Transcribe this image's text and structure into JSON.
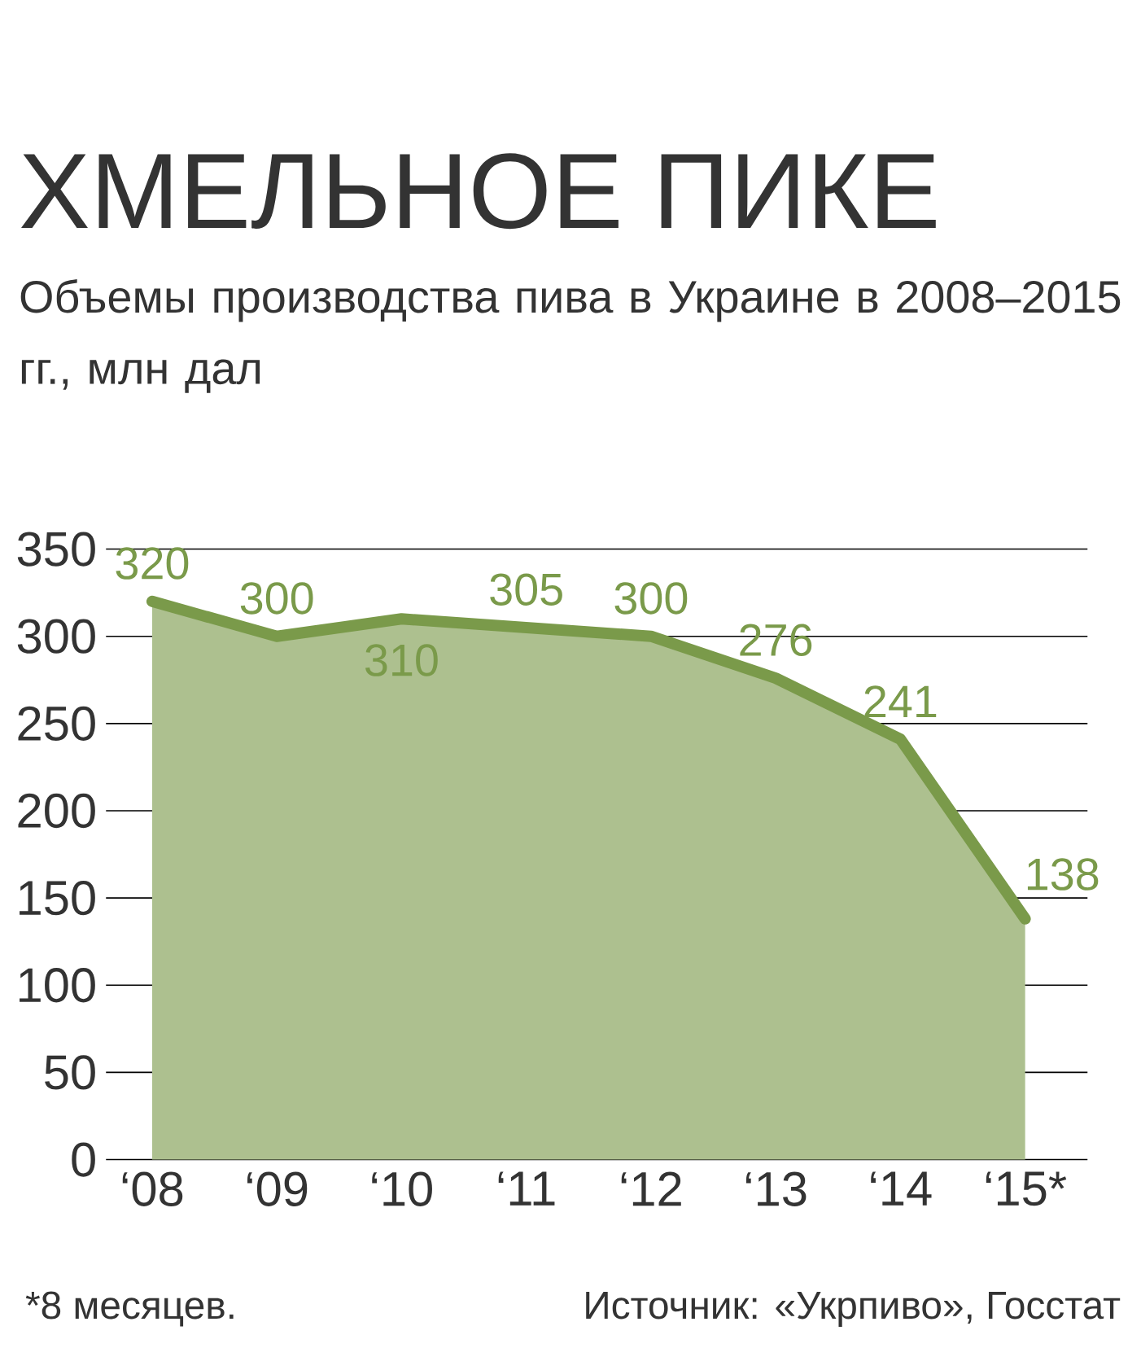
{
  "chart_data": {
    "type": "area",
    "title": "ХМЕЛЬНОЕ ПИКЕ",
    "subtitle": "Объемы производства пива в Украине в 2008–2015 гг., млн дал",
    "categories": [
      "‘08",
      "‘09",
      "‘10",
      "‘11",
      "‘12",
      "‘13",
      "‘14",
      "‘15*"
    ],
    "series": [
      {
        "color": "#7a9a4a",
        "values": [
          320,
          300,
          310,
          305,
          300,
          276,
          241,
          138
        ]
      }
    ],
    "ylim": [
      0,
      350
    ],
    "yticks": [
      0,
      50,
      100,
      150,
      200,
      250,
      300,
      350
    ],
    "grid": "y",
    "data_labels": true,
    "annotations": [
      "*8 месяцев.",
      "Источник: «Укрпиво», Госстат"
    ]
  }
}
